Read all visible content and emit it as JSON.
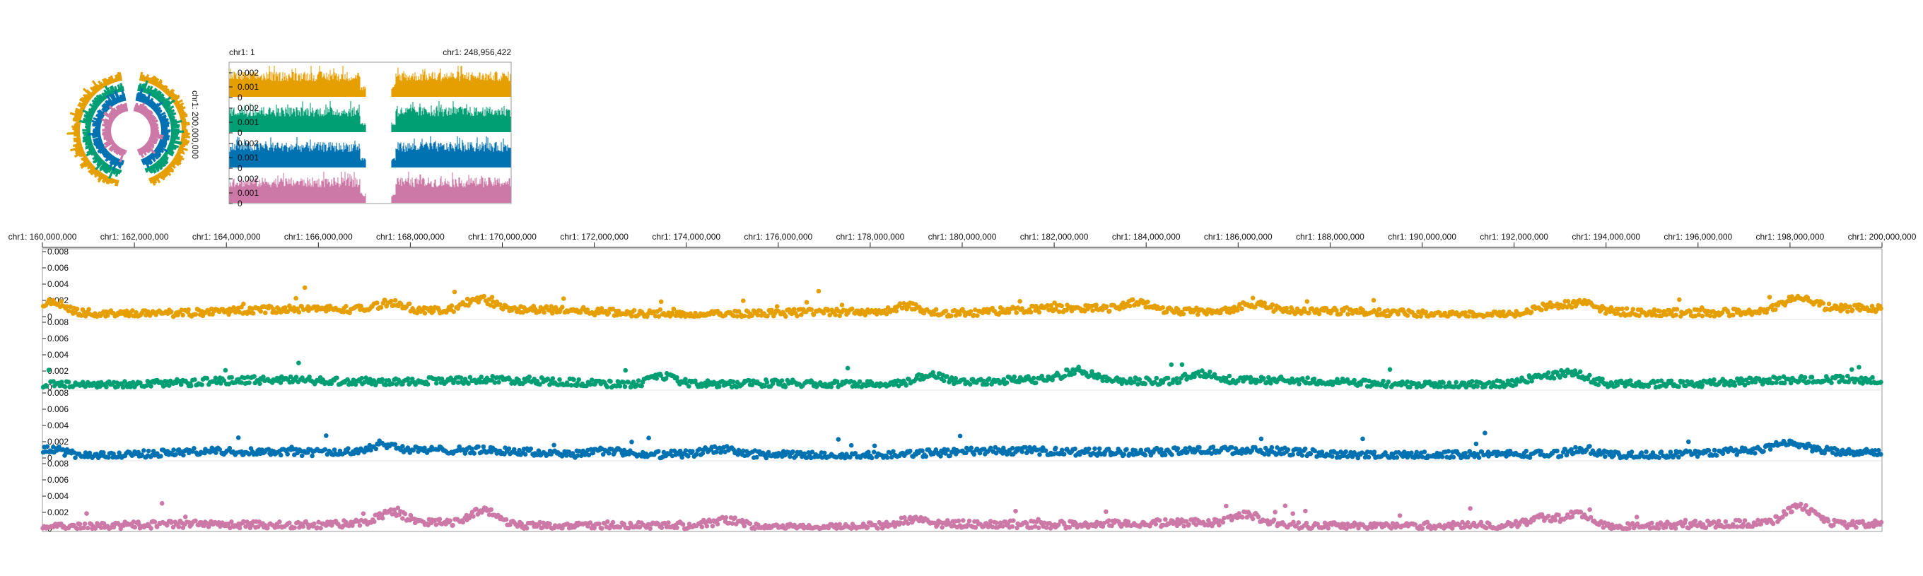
{
  "overview": {
    "start_label": "chr1: 1",
    "end_label": "chr1: 248,956,422",
    "circos_label": "chr1: 200,000,000",
    "ticks": [
      "0.002",
      "0.001",
      "0"
    ]
  },
  "detail": {
    "x_ticks": [
      "chr1: 160,000,000",
      "chr1: 162,000,000",
      "chr1: 164,000,000",
      "chr1: 166,000,000",
      "chr1: 168,000,000",
      "chr1: 170,000,000",
      "chr1: 172,000,000",
      "chr1: 174,000,000",
      "chr1: 176,000,000",
      "chr1: 178,000,000",
      "chr1: 180,000,000",
      "chr1: 182,000,000",
      "chr1: 184,000,000",
      "chr1: 186,000,000",
      "chr1: 188,000,000",
      "chr1: 190,000,000",
      "chr1: 192,000,000",
      "chr1: 194,000,000",
      "chr1: 196,000,000",
      "chr1: 198,000,000",
      "chr1: 200,000,000"
    ],
    "y_ticks": [
      "0.008",
      "0.006",
      "0.004",
      "0.002",
      "0"
    ]
  },
  "colors": [
    "#e69f00",
    "#009e73",
    "#0072b2",
    "#cc79a7"
  ],
  "chart_data": [
    {
      "type": "area",
      "description": "Overview multi-track histogram of whole chromosome chr1 (gap near centromere)",
      "xlim": [
        1,
        248956422
      ],
      "ylim": [
        0,
        0.002
      ],
      "series": [
        {
          "color": "#e69f00"
        },
        {
          "color": "#009e73"
        },
        {
          "color": "#0072b2"
        },
        {
          "color": "#cc79a7"
        }
      ],
      "gap": [
        121000000,
        143000000
      ]
    },
    {
      "type": "scatter",
      "description": "Detail multi-track scatter, chr1:160,000,000-200,000,000",
      "xlim": [
        160000000,
        200000000
      ],
      "ylim": [
        0,
        0.008
      ],
      "series": [
        {
          "color": "#e69f00",
          "baseline": 0.0011,
          "peaks": [
            [
              160200000,
              0.0032
            ],
            [
              167600000,
              0.0028
            ],
            [
              169500000,
              0.0035
            ],
            [
              178800000,
              0.0026
            ],
            [
              183800000,
              0.0025
            ],
            [
              186300000,
              0.0026
            ],
            [
              192800000,
              0.0026
            ],
            [
              193500000,
              0.0028
            ],
            [
              198200000,
              0.0038
            ]
          ]
        },
        {
          "color": "#009e73",
          "baseline": 0.0011,
          "peaks": [
            [
              173500000,
              0.0028
            ],
            [
              179300000,
              0.003
            ],
            [
              182500000,
              0.003
            ],
            [
              185200000,
              0.0028
            ],
            [
              192600000,
              0.0025
            ],
            [
              193300000,
              0.0032
            ]
          ]
        },
        {
          "color": "#0072b2",
          "baseline": 0.0011,
          "peaks": [
            [
              160200000,
              0.0025
            ],
            [
              167400000,
              0.0026
            ],
            [
              172300000,
              0.002
            ],
            [
              174700000,
              0.0021
            ],
            [
              193500000,
              0.0024
            ],
            [
              198000000,
              0.0027
            ]
          ]
        },
        {
          "color": "#cc79a7",
          "baseline": 0.0008,
          "peaks": [
            [
              167600000,
              0.0028
            ],
            [
              169600000,
              0.0035
            ],
            [
              174900000,
              0.002
            ],
            [
              178900000,
              0.0018
            ],
            [
              186200000,
              0.0026
            ],
            [
              192600000,
              0.0027
            ],
            [
              193400000,
              0.0035
            ],
            [
              198200000,
              0.0045
            ]
          ]
        }
      ]
    }
  ]
}
